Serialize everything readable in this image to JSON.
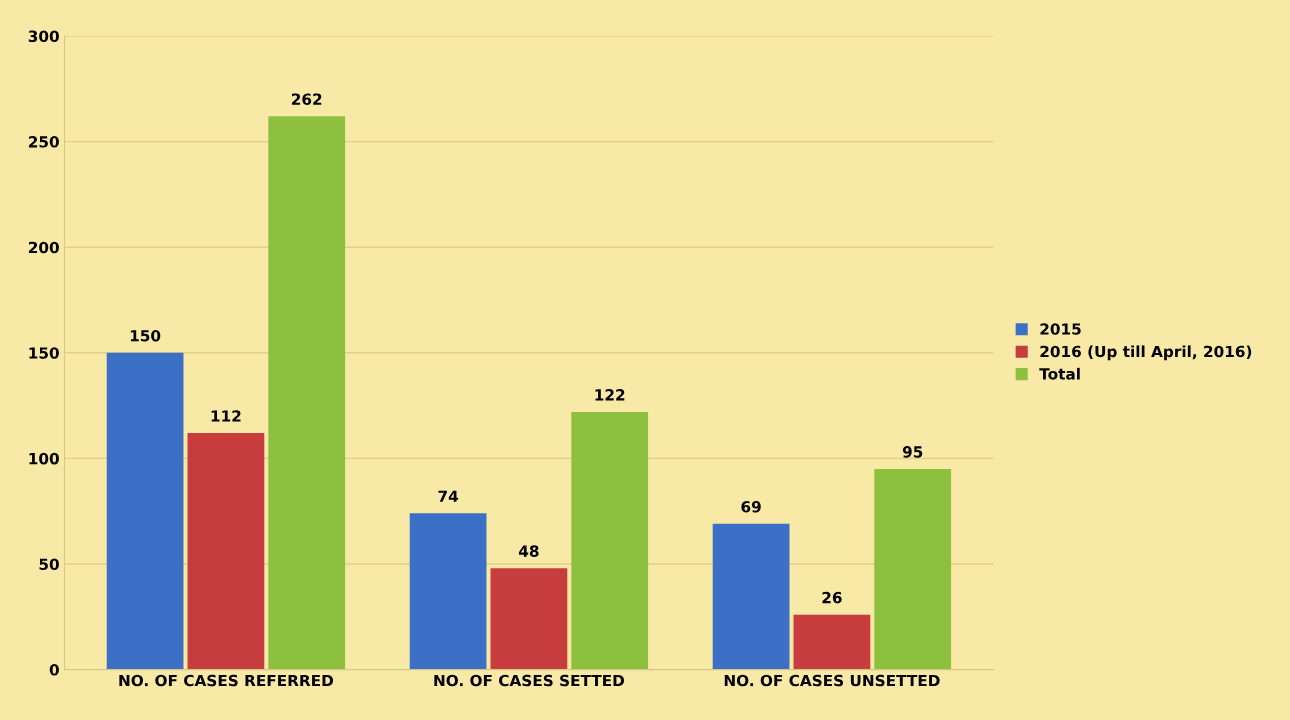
{
  "chart_data": {
    "type": "bar",
    "categories": [
      "NO. OF CASES REFERRED",
      "NO. OF CASES SETTED",
      "NO. OF CASES UNSETTED"
    ],
    "series": [
      {
        "name": "2015",
        "color": "#3c6fc6",
        "values": [
          150,
          74,
          69
        ]
      },
      {
        "name": "2016 (Up till April, 2016)",
        "color": "#c73c3c",
        "values": [
          112,
          48,
          26
        ]
      },
      {
        "name": "Total",
        "color": "#8dc03e",
        "values": [
          262,
          122,
          95
        ]
      }
    ],
    "ylim": [
      0,
      300
    ],
    "yticks": [
      0,
      50,
      100,
      150,
      200,
      250,
      300
    ],
    "grid": "y",
    "legend": "right",
    "data_labels": true
  }
}
